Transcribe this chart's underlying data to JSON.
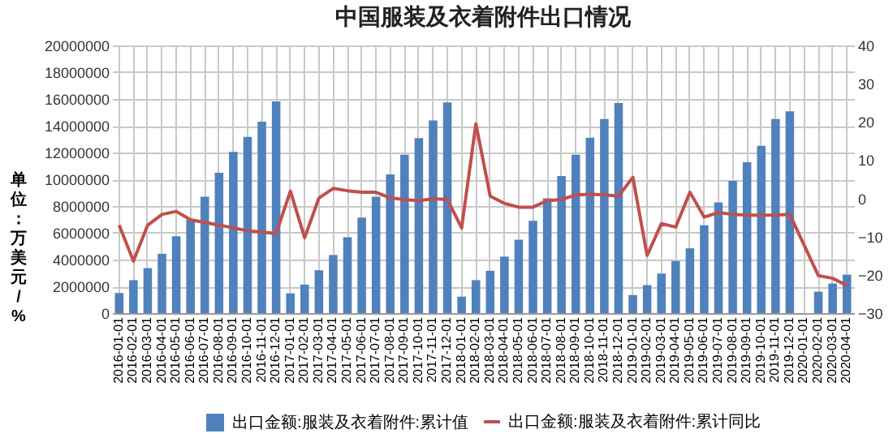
{
  "chart_data": {
    "type": "bar",
    "title": "中国服装及衣着附件出口情况",
    "ylabel": "单位：万美元/%",
    "categories": [
      "2016-01-01",
      "2016-02-01",
      "2016-03-01",
      "2016-04-01",
      "2016-05-01",
      "2016-06-01",
      "2016-07-01",
      "2016-08-01",
      "2016-09-01",
      "2016-10-01",
      "2016-11-01",
      "2016-12-01",
      "2017-01-01",
      "2017-02-01",
      "2017-03-01",
      "2017-04-01",
      "2017-05-01",
      "2017-06-01",
      "2017-07-01",
      "2017-08-01",
      "2017-09-01",
      "2017-10-01",
      "2017-11-01",
      "2017-12-01",
      "2018-01-01",
      "2018-02-01",
      "2018-03-01",
      "2018-04-01",
      "2018-05-01",
      "2018-06-01",
      "2018-07-01",
      "2018-08-01",
      "2018-09-01",
      "2018-10-01",
      "2018-11-01",
      "2018-12-01",
      "2019-01-01",
      "2019-02-01",
      "2019-03-01",
      "2019-04-01",
      "2019-05-01",
      "2019-06-01",
      "2019-07-01",
      "2019-08-01",
      "2019-09-01",
      "2019-10-01",
      "2019-11-01",
      "2019-12-01",
      "2020-01-01",
      "2020-02-01",
      "2020-03-01",
      "2020-04-01"
    ],
    "series": [
      {
        "name": "出口金额:服装及衣着附件:累计值",
        "color": "#4f81bd",
        "values": [
          1500000,
          2460000,
          3360000,
          4430000,
          5740000,
          6970000,
          8690000,
          10490000,
          12050000,
          13160000,
          14300000,
          15820000,
          1480000,
          2130000,
          3200000,
          4340000,
          5660000,
          7130000,
          8690000,
          10370000,
          11840000,
          13070000,
          14390000,
          15740000,
          1230000,
          2460000,
          3160000,
          4220000,
          5490000,
          6890000,
          8570000,
          10250000,
          11840000,
          13110000,
          14500000,
          15700000,
          1350000,
          2090000,
          2950000,
          3890000,
          4840000,
          6560000,
          8280000,
          9880000,
          11270000,
          12500000,
          14500000,
          15080000,
          null,
          1600000,
          2210000,
          2870000
        ]
      },
      {
        "name": "出口金额:服装及衣着附件:累计同比",
        "type": "line",
        "axis": "y2",
        "color": "#c0504d",
        "values": [
          -7.0,
          -16.4,
          -7.0,
          -4.2,
          -3.4,
          -5.6,
          -6.3,
          -7.0,
          -7.7,
          -8.5,
          -8.8,
          -9.2,
          1.9,
          -10.3,
          0.1,
          2.6,
          2.0,
          1.6,
          1.6,
          0.1,
          -0.3,
          -0.6,
          -0.1,
          -0.3,
          -7.7,
          19.5,
          0.6,
          -1.3,
          -2.3,
          -2.3,
          -0.6,
          -0.3,
          0.9,
          1.1,
          0.9,
          0.6,
          5.5,
          -14.9,
          -6.6,
          -7.5,
          1.6,
          -4.9,
          -3.7,
          -4.2,
          -4.4,
          -4.4,
          -4.4,
          -4.2,
          null,
          -20.2,
          -20.9,
          -22.8
        ]
      }
    ],
    "ylim": [
      0,
      20000000
    ],
    "yticks": [
      0,
      2000000,
      4000000,
      6000000,
      8000000,
      10000000,
      12000000,
      14000000,
      16000000,
      18000000,
      20000000
    ],
    "y2lim": [
      -30,
      40
    ],
    "y2ticks": [
      -30,
      -20,
      -10,
      0,
      10,
      20,
      30,
      40
    ],
    "grid": true,
    "legend": "bottom"
  }
}
